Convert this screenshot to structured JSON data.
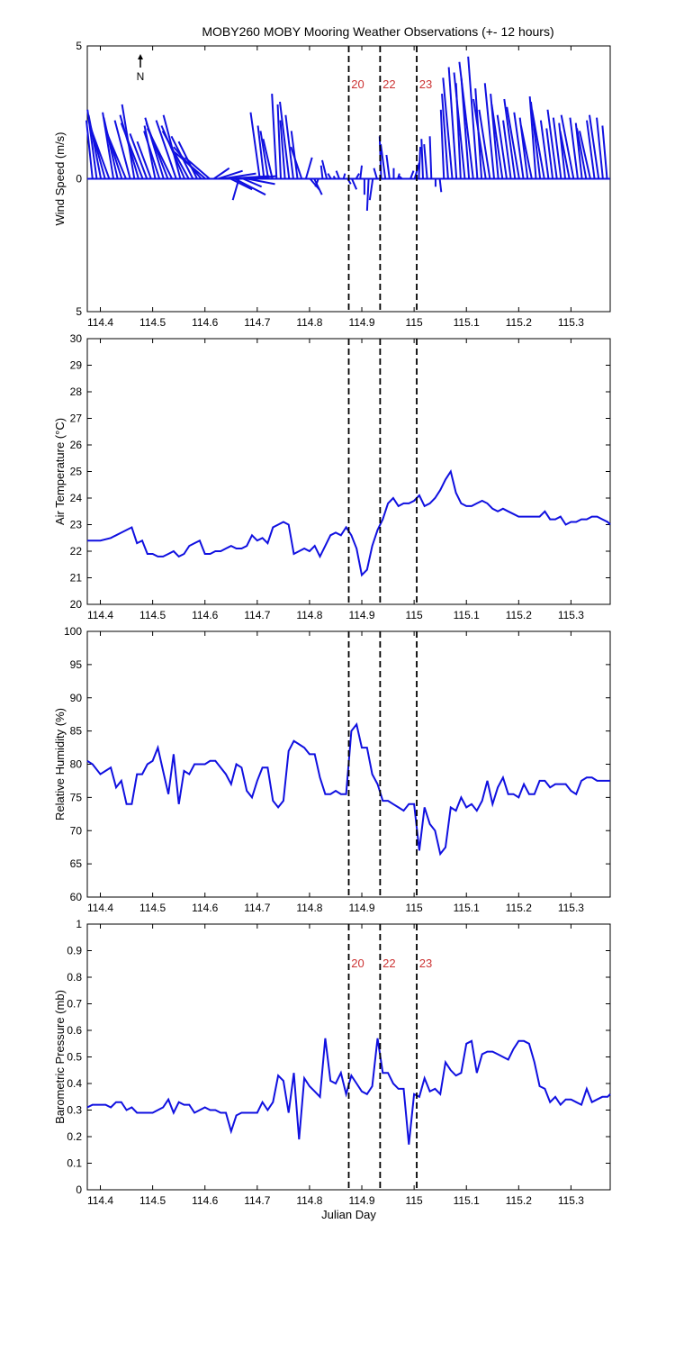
{
  "figure": {
    "title": "MOBY260 MOBY Mooring Weather Observations (+- 12 hours)",
    "north_label": "N"
  },
  "chart_data": [
    {
      "type": "line",
      "name": "wind",
      "ylabel": "Wind Speed (m/s)",
      "xlabel": "",
      "xlim": [
        114.375,
        115.375
      ],
      "ylim": [
        -5,
        5
      ],
      "xticks": [
        114.4,
        114.5,
        114.6,
        114.7,
        114.8,
        114.9,
        115.0,
        115.1,
        115.2,
        115.3
      ],
      "xtick_labels": [
        "114.4",
        "114.5",
        "114.6",
        "114.7",
        "114.8",
        "114.9",
        "115",
        "115.1",
        "115.2",
        "115.3"
      ],
      "yticks": [
        5,
        0,
        -5
      ],
      "ytick_labels": [
        "5",
        "0",
        "5"
      ],
      "vlines": [
        114.875,
        114.935,
        115.005
      ],
      "vline_labels": [
        "20",
        "22",
        "23"
      ],
      "vector_x": [
        114.385,
        114.393,
        114.401,
        114.409,
        114.417,
        114.425,
        114.433,
        114.441,
        114.449,
        114.457,
        114.465,
        114.473,
        114.481,
        114.489,
        114.497,
        114.505,
        114.513,
        114.521,
        114.529,
        114.537,
        114.545,
        114.553,
        114.561,
        114.569,
        114.577,
        114.585,
        114.593,
        114.601,
        114.609,
        114.617,
        114.625,
        114.633,
        114.641,
        114.649,
        114.657,
        114.665,
        114.673,
        114.681,
        114.689,
        114.697,
        114.705,
        114.713,
        114.721,
        114.729,
        114.737,
        114.745,
        114.753,
        114.761,
        114.769,
        114.777,
        114.785,
        114.793,
        114.801,
        114.809,
        114.817,
        114.825,
        114.833,
        114.841,
        114.849,
        114.857,
        114.865,
        114.873,
        114.881,
        114.889,
        114.897,
        114.905,
        114.913,
        114.921,
        114.929,
        114.937,
        114.945,
        114.953,
        114.961,
        114.969,
        114.977,
        114.985,
        114.993,
        115.001,
        115.009,
        115.017,
        115.025,
        115.033,
        115.041,
        115.049,
        115.057,
        115.065,
        115.073,
        115.081,
        115.089,
        115.097,
        115.105,
        115.113,
        115.121,
        115.129,
        115.137,
        115.145,
        115.153,
        115.161,
        115.169,
        115.177,
        115.185,
        115.193,
        115.201,
        115.209,
        115.217,
        115.225,
        115.233,
        115.241,
        115.249,
        115.257,
        115.265,
        115.273,
        115.281,
        115.289,
        115.297,
        115.305,
        115.313,
        115.321,
        115.329,
        115.337,
        115.345,
        115.353,
        115.361,
        115.369
      ],
      "vector_u": [
        -0.4,
        -0.6,
        -0.8,
        -1.0,
        -1.2,
        -0.7,
        -0.9,
        -1.1,
        -1.3,
        -1.0,
        -0.8,
        -1.2,
        -1.4,
        -1.1,
        -0.9,
        -0.7,
        -1.0,
        -1.2,
        -1.4,
        -1.6,
        -1.3,
        -1.1,
        -1.5,
        -1.7,
        -1.4,
        -1.2,
        -1.8,
        -2.0,
        -1.6,
        1.0,
        1.6,
        2.2,
        2.8,
        1.4,
        2.0,
        -0.4,
        1.2,
        1.8,
        1.6,
        0.8,
        -0.6,
        -0.4,
        -0.5,
        -0.6,
        -0.3,
        -0.2,
        -0.3,
        -0.6,
        -0.5,
        -0.4,
        -0.7,
        0.4,
        0.6,
        0.5,
        -0.2,
        -0.1,
        -0.3,
        -0.2,
        -0.1,
        -0.2,
        0.1,
        0.2,
        0.3,
        0.2,
        0.1,
        0.0,
        -0.1,
        -0.2,
        -0.2,
        -0.1,
        -0.3,
        -0.2,
        0.0,
        0.1,
        -0.2,
        0.1,
        0.2,
        0.3,
        0.1,
        -0.1,
        -0.2,
        -0.1,
        0.0,
        0.1,
        -0.2,
        -0.4,
        -0.6,
        -0.5,
        -0.3,
        -0.7,
        -0.5,
        -0.9,
        -0.6,
        -0.4,
        -0.8,
        -0.7,
        -0.6,
        -0.5,
        -0.7,
        -0.6,
        -0.5,
        -0.7,
        -0.8,
        -0.6,
        -0.5,
        -0.7,
        -0.4,
        -0.6,
        -0.8,
        -0.5,
        -0.4,
        -0.6,
        -0.5,
        -0.4,
        -0.6,
        -0.8,
        -0.5,
        -0.4,
        -0.6,
        -0.7,
        -0.5,
        -0.6,
        -0.4,
        -0.3
      ],
      "vector_v": [
        2.2,
        2.6,
        2.4,
        2.1,
        1.9,
        2.5,
        2.3,
        2.0,
        1.8,
        2.2,
        2.8,
        2.4,
        2.1,
        1.7,
        1.4,
        2.0,
        1.8,
        2.3,
        2.1,
        1.9,
        2.2,
        2.4,
        2.0,
        1.8,
        1.6,
        1.4,
        1.2,
        1.0,
        0.8,
        0.4,
        0.3,
        0.2,
        0.1,
        -0.4,
        -0.6,
        -0.8,
        -0.3,
        -0.2,
        0.1,
        0.0,
        2.5,
        2.0,
        1.8,
        1.5,
        3.2,
        2.8,
        2.2,
        2.9,
        2.4,
        1.8,
        1.2,
        0.8,
        -0.4,
        -0.6,
        -0.3,
        0.5,
        0.7,
        0.2,
        0.1,
        0.3,
        0.2,
        -0.2,
        -0.4,
        0.2,
        0.5,
        -0.6,
        -1.2,
        -0.8,
        0.4,
        1.6,
        1.3,
        0.9,
        0.4,
        0.2,
        0.1,
        0.0,
        0.3,
        0.6,
        1.2,
        1.5,
        1.3,
        1.6,
        -0.3,
        -0.5,
        2.6,
        3.2,
        3.8,
        4.2,
        3.6,
        4.0,
        3.8,
        4.4,
        4.6,
        3.4,
        3.0,
        2.6,
        3.6,
        3.2,
        2.8,
        2.4,
        2.2,
        3.0,
        2.7,
        2.5,
        2.3,
        2.0,
        3.1,
        2.9,
        2.6,
        2.2,
        1.9,
        2.6,
        2.3,
        2.1,
        1.8,
        2.4,
        2.3,
        2.1,
        1.9,
        1.8,
        2.2,
        2.4,
        2.3,
        2.0,
        1.6,
        1.2
      ]
    },
    {
      "type": "line",
      "name": "air_temp",
      "ylabel": "Air Temperature (°C)",
      "xlabel": "",
      "xlim": [
        114.375,
        115.375
      ],
      "ylim": [
        20,
        30
      ],
      "xticks": [
        114.4,
        114.5,
        114.6,
        114.7,
        114.8,
        114.9,
        115.0,
        115.1,
        115.2,
        115.3
      ],
      "xtick_labels": [
        "114.4",
        "114.5",
        "114.6",
        "114.7",
        "114.8",
        "114.9",
        "115",
        "115.1",
        "115.2",
        "115.3"
      ],
      "yticks": [
        20,
        21,
        22,
        23,
        24,
        25,
        26,
        27,
        28,
        29,
        30
      ],
      "ytick_labels": [
        "20",
        "21",
        "22",
        "23",
        "24",
        "25",
        "26",
        "27",
        "28",
        "29",
        "30"
      ],
      "vlines": [
        114.875,
        114.935,
        115.005
      ],
      "x": [
        114.375,
        114.385,
        114.4,
        114.42,
        114.43,
        114.44,
        114.46,
        114.47,
        114.48,
        114.49,
        114.5,
        114.51,
        114.52,
        114.53,
        114.54,
        114.55,
        114.56,
        114.57,
        114.58,
        114.59,
        114.6,
        114.61,
        114.62,
        114.63,
        114.64,
        114.65,
        114.66,
        114.67,
        114.68,
        114.69,
        114.7,
        114.71,
        114.72,
        114.73,
        114.74,
        114.75,
        114.76,
        114.77,
        114.78,
        114.79,
        114.8,
        114.81,
        114.82,
        114.83,
        114.84,
        114.85,
        114.86,
        114.87,
        114.88,
        114.89,
        114.9,
        114.91,
        114.92,
        114.93,
        114.94,
        114.95,
        114.96,
        114.97,
        114.98,
        114.99,
        115.0,
        115.01,
        115.02,
        115.03,
        115.04,
        115.05,
        115.06,
        115.07,
        115.08,
        115.09,
        115.1,
        115.11,
        115.12,
        115.13,
        115.14,
        115.15,
        115.16,
        115.17,
        115.18,
        115.19,
        115.2,
        115.21,
        115.22,
        115.23,
        115.24,
        115.25,
        115.26,
        115.27,
        115.28,
        115.29,
        115.3,
        115.31,
        115.32,
        115.33,
        115.34,
        115.35,
        115.36,
        115.37,
        115.375
      ],
      "y": [
        22.4,
        22.4,
        22.4,
        22.5,
        22.6,
        22.7,
        22.9,
        22.3,
        22.4,
        21.9,
        21.9,
        21.8,
        21.8,
        21.9,
        22.0,
        21.8,
        21.9,
        22.2,
        22.3,
        22.4,
        21.9,
        21.9,
        22.0,
        22.0,
        22.1,
        22.2,
        22.1,
        22.1,
        22.2,
        22.6,
        22.4,
        22.5,
        22.3,
        22.9,
        23.0,
        23.1,
        23.0,
        21.9,
        22.0,
        22.1,
        22.0,
        22.2,
        21.8,
        22.2,
        22.6,
        22.7,
        22.6,
        22.9,
        22.6,
        22.1,
        21.1,
        21.3,
        22.2,
        22.8,
        23.2,
        23.8,
        24.0,
        23.7,
        23.8,
        23.8,
        23.9,
        24.1,
        23.7,
        23.8,
        24.0,
        24.3,
        24.7,
        25.0,
        24.2,
        23.8,
        23.7,
        23.7,
        23.8,
        23.9,
        23.8,
        23.6,
        23.5,
        23.6,
        23.5,
        23.4,
        23.3,
        23.3,
        23.3,
        23.3,
        23.3,
        23.5,
        23.2,
        23.2,
        23.3,
        23.0,
        23.1,
        23.1,
        23.2,
        23.2,
        23.3,
        23.3,
        23.2,
        23.1,
        23.0
      ]
    },
    {
      "type": "line",
      "name": "humidity",
      "ylabel": "Relative Humidity (%)",
      "xlabel": "",
      "xlim": [
        114.375,
        115.375
      ],
      "ylim": [
        60,
        100
      ],
      "xticks": [
        114.4,
        114.5,
        114.6,
        114.7,
        114.8,
        114.9,
        115.0,
        115.1,
        115.2,
        115.3
      ],
      "xtick_labels": [
        "114.4",
        "114.5",
        "114.6",
        "114.7",
        "114.8",
        "114.9",
        "115",
        "115.1",
        "115.2",
        "115.3"
      ],
      "yticks": [
        60,
        65,
        70,
        75,
        80,
        85,
        90,
        95,
        100
      ],
      "ytick_labels": [
        "60",
        "65",
        "70",
        "75",
        "80",
        "85",
        "90",
        "95",
        "100"
      ],
      "vlines": [
        114.875,
        114.935,
        115.005
      ],
      "x": [
        114.375,
        114.385,
        114.4,
        114.41,
        114.42,
        114.43,
        114.44,
        114.45,
        114.46,
        114.47,
        114.48,
        114.49,
        114.5,
        114.51,
        114.52,
        114.53,
        114.54,
        114.55,
        114.56,
        114.57,
        114.58,
        114.59,
        114.6,
        114.61,
        114.62,
        114.63,
        114.64,
        114.65,
        114.66,
        114.67,
        114.68,
        114.69,
        114.7,
        114.71,
        114.72,
        114.73,
        114.74,
        114.75,
        114.76,
        114.77,
        114.78,
        114.79,
        114.8,
        114.81,
        114.82,
        114.83,
        114.84,
        114.85,
        114.86,
        114.87,
        114.88,
        114.89,
        114.9,
        114.91,
        114.92,
        114.93,
        114.94,
        114.95,
        114.96,
        114.97,
        114.98,
        114.99,
        115.0,
        115.01,
        115.02,
        115.03,
        115.04,
        115.05,
        115.06,
        115.07,
        115.08,
        115.09,
        115.1,
        115.11,
        115.12,
        115.13,
        115.14,
        115.15,
        115.16,
        115.17,
        115.18,
        115.19,
        115.2,
        115.21,
        115.22,
        115.23,
        115.24,
        115.25,
        115.26,
        115.27,
        115.28,
        115.29,
        115.3,
        115.31,
        115.32,
        115.33,
        115.34,
        115.35,
        115.36,
        115.37,
        115.375
      ],
      "y": [
        80.5,
        80.0,
        78.5,
        79.0,
        79.5,
        76.5,
        77.5,
        74.0,
        74.0,
        78.5,
        78.5,
        80.0,
        80.5,
        82.5,
        79.0,
        75.5,
        81.5,
        74.0,
        79.0,
        78.5,
        80.0,
        80.0,
        80.0,
        80.5,
        80.5,
        79.5,
        78.5,
        77.0,
        80.0,
        79.5,
        76.0,
        75.0,
        77.5,
        79.5,
        79.5,
        74.5,
        73.5,
        74.5,
        82.0,
        83.5,
        83.0,
        82.5,
        81.5,
        81.5,
        78.0,
        75.5,
        75.5,
        76.0,
        75.5,
        75.5,
        85.0,
        86.0,
        82.5,
        82.5,
        78.5,
        77.0,
        74.5,
        74.5,
        74.0,
        73.5,
        73.0,
        74.0,
        74.0,
        67.0,
        73.5,
        71.0,
        70.0,
        66.5,
        67.5,
        73.5,
        73.0,
        75.0,
        73.5,
        74.0,
        73.0,
        74.5,
        77.5,
        74.0,
        76.5,
        78.0,
        75.5,
        75.5,
        75.0,
        77.0,
        75.5,
        75.5,
        77.5,
        77.5,
        76.5,
        77.0,
        77.0,
        77.0,
        76.0,
        75.5,
        77.5,
        78.0,
        78.0,
        77.5,
        77.5,
        77.5,
        77.5
      ],
      "note_x_dup": true
    },
    {
      "type": "line",
      "name": "pressure",
      "ylabel": "Barometric Pressure (mb)",
      "xlabel": "Julian Day",
      "xlim": [
        114.375,
        115.375
      ],
      "ylim": [
        0,
        1
      ],
      "xticks": [
        114.4,
        114.5,
        114.6,
        114.7,
        114.8,
        114.9,
        115.0,
        115.1,
        115.2,
        115.3
      ],
      "xtick_labels": [
        "114.4",
        "114.5",
        "114.6",
        "114.7",
        "114.8",
        "114.9",
        "115",
        "115.1",
        "115.2",
        "115.3"
      ],
      "yticks": [
        0,
        0.1,
        0.2,
        0.3,
        0.4,
        0.5,
        0.6,
        0.7,
        0.8,
        0.9,
        1
      ],
      "ytick_labels": [
        "0",
        "0.1",
        "0.2",
        "0.3",
        "0.4",
        "0.5",
        "0.6",
        "0.7",
        "0.8",
        "0.9",
        "1"
      ],
      "vlines": [
        114.875,
        114.935,
        115.005
      ],
      "vline_labels": [
        "20",
        "22",
        "23"
      ],
      "x": [
        114.375,
        114.385,
        114.4,
        114.41,
        114.42,
        114.43,
        114.44,
        114.45,
        114.46,
        114.47,
        114.48,
        114.49,
        114.5,
        114.51,
        114.52,
        114.53,
        114.54,
        114.55,
        114.56,
        114.57,
        114.58,
        114.59,
        114.6,
        114.61,
        114.62,
        114.63,
        114.64,
        114.65,
        114.66,
        114.67,
        114.68,
        114.69,
        114.7,
        114.71,
        114.72,
        114.73,
        114.74,
        114.75,
        114.76,
        114.77,
        114.78,
        114.79,
        114.8,
        114.81,
        114.82,
        114.83,
        114.84,
        114.85,
        114.86,
        114.87,
        114.88,
        114.89,
        114.9,
        114.91,
        114.92,
        114.93,
        114.94,
        114.95,
        114.96,
        114.97,
        114.98,
        114.99,
        115.0,
        115.01,
        115.02,
        115.03,
        115.04,
        115.05,
        115.06,
        115.07,
        115.08,
        115.09,
        115.1,
        115.11,
        115.12,
        115.13,
        115.14,
        115.15,
        115.16,
        115.17,
        115.18,
        115.19,
        115.2,
        115.21,
        115.22,
        115.23,
        115.24,
        115.25,
        115.26,
        115.27,
        115.28,
        115.29,
        115.3,
        115.31,
        115.32,
        115.33,
        115.34,
        115.35,
        115.36,
        115.37,
        115.375
      ],
      "y": [
        0.31,
        0.32,
        0.32,
        0.32,
        0.31,
        0.33,
        0.33,
        0.3,
        0.31,
        0.29,
        0.29,
        0.29,
        0.29,
        0.3,
        0.31,
        0.34,
        0.29,
        0.33,
        0.32,
        0.32,
        0.29,
        0.3,
        0.31,
        0.3,
        0.3,
        0.29,
        0.29,
        0.22,
        0.28,
        0.29,
        0.29,
        0.29,
        0.29,
        0.33,
        0.3,
        0.33,
        0.43,
        0.41,
        0.29,
        0.44,
        0.19,
        0.42,
        0.39,
        0.37,
        0.35,
        0.57,
        0.41,
        0.4,
        0.44,
        0.36,
        0.43,
        0.4,
        0.37,
        0.36,
        0.39,
        0.57,
        0.44,
        0.44,
        0.4,
        0.38,
        0.38,
        0.17,
        0.36,
        0.35,
        0.42,
        0.37,
        0.38,
        0.36,
        0.48,
        0.45,
        0.43,
        0.44,
        0.55,
        0.56,
        0.44,
        0.51,
        0.52,
        0.52,
        0.51,
        0.5,
        0.49,
        0.53,
        0.56,
        0.56,
        0.55,
        0.48,
        0.39,
        0.38,
        0.33,
        0.35,
        0.32,
        0.34,
        0.34,
        0.33,
        0.32,
        0.38,
        0.33,
        0.34,
        0.35,
        0.35,
        0.36
      ]
    }
  ]
}
